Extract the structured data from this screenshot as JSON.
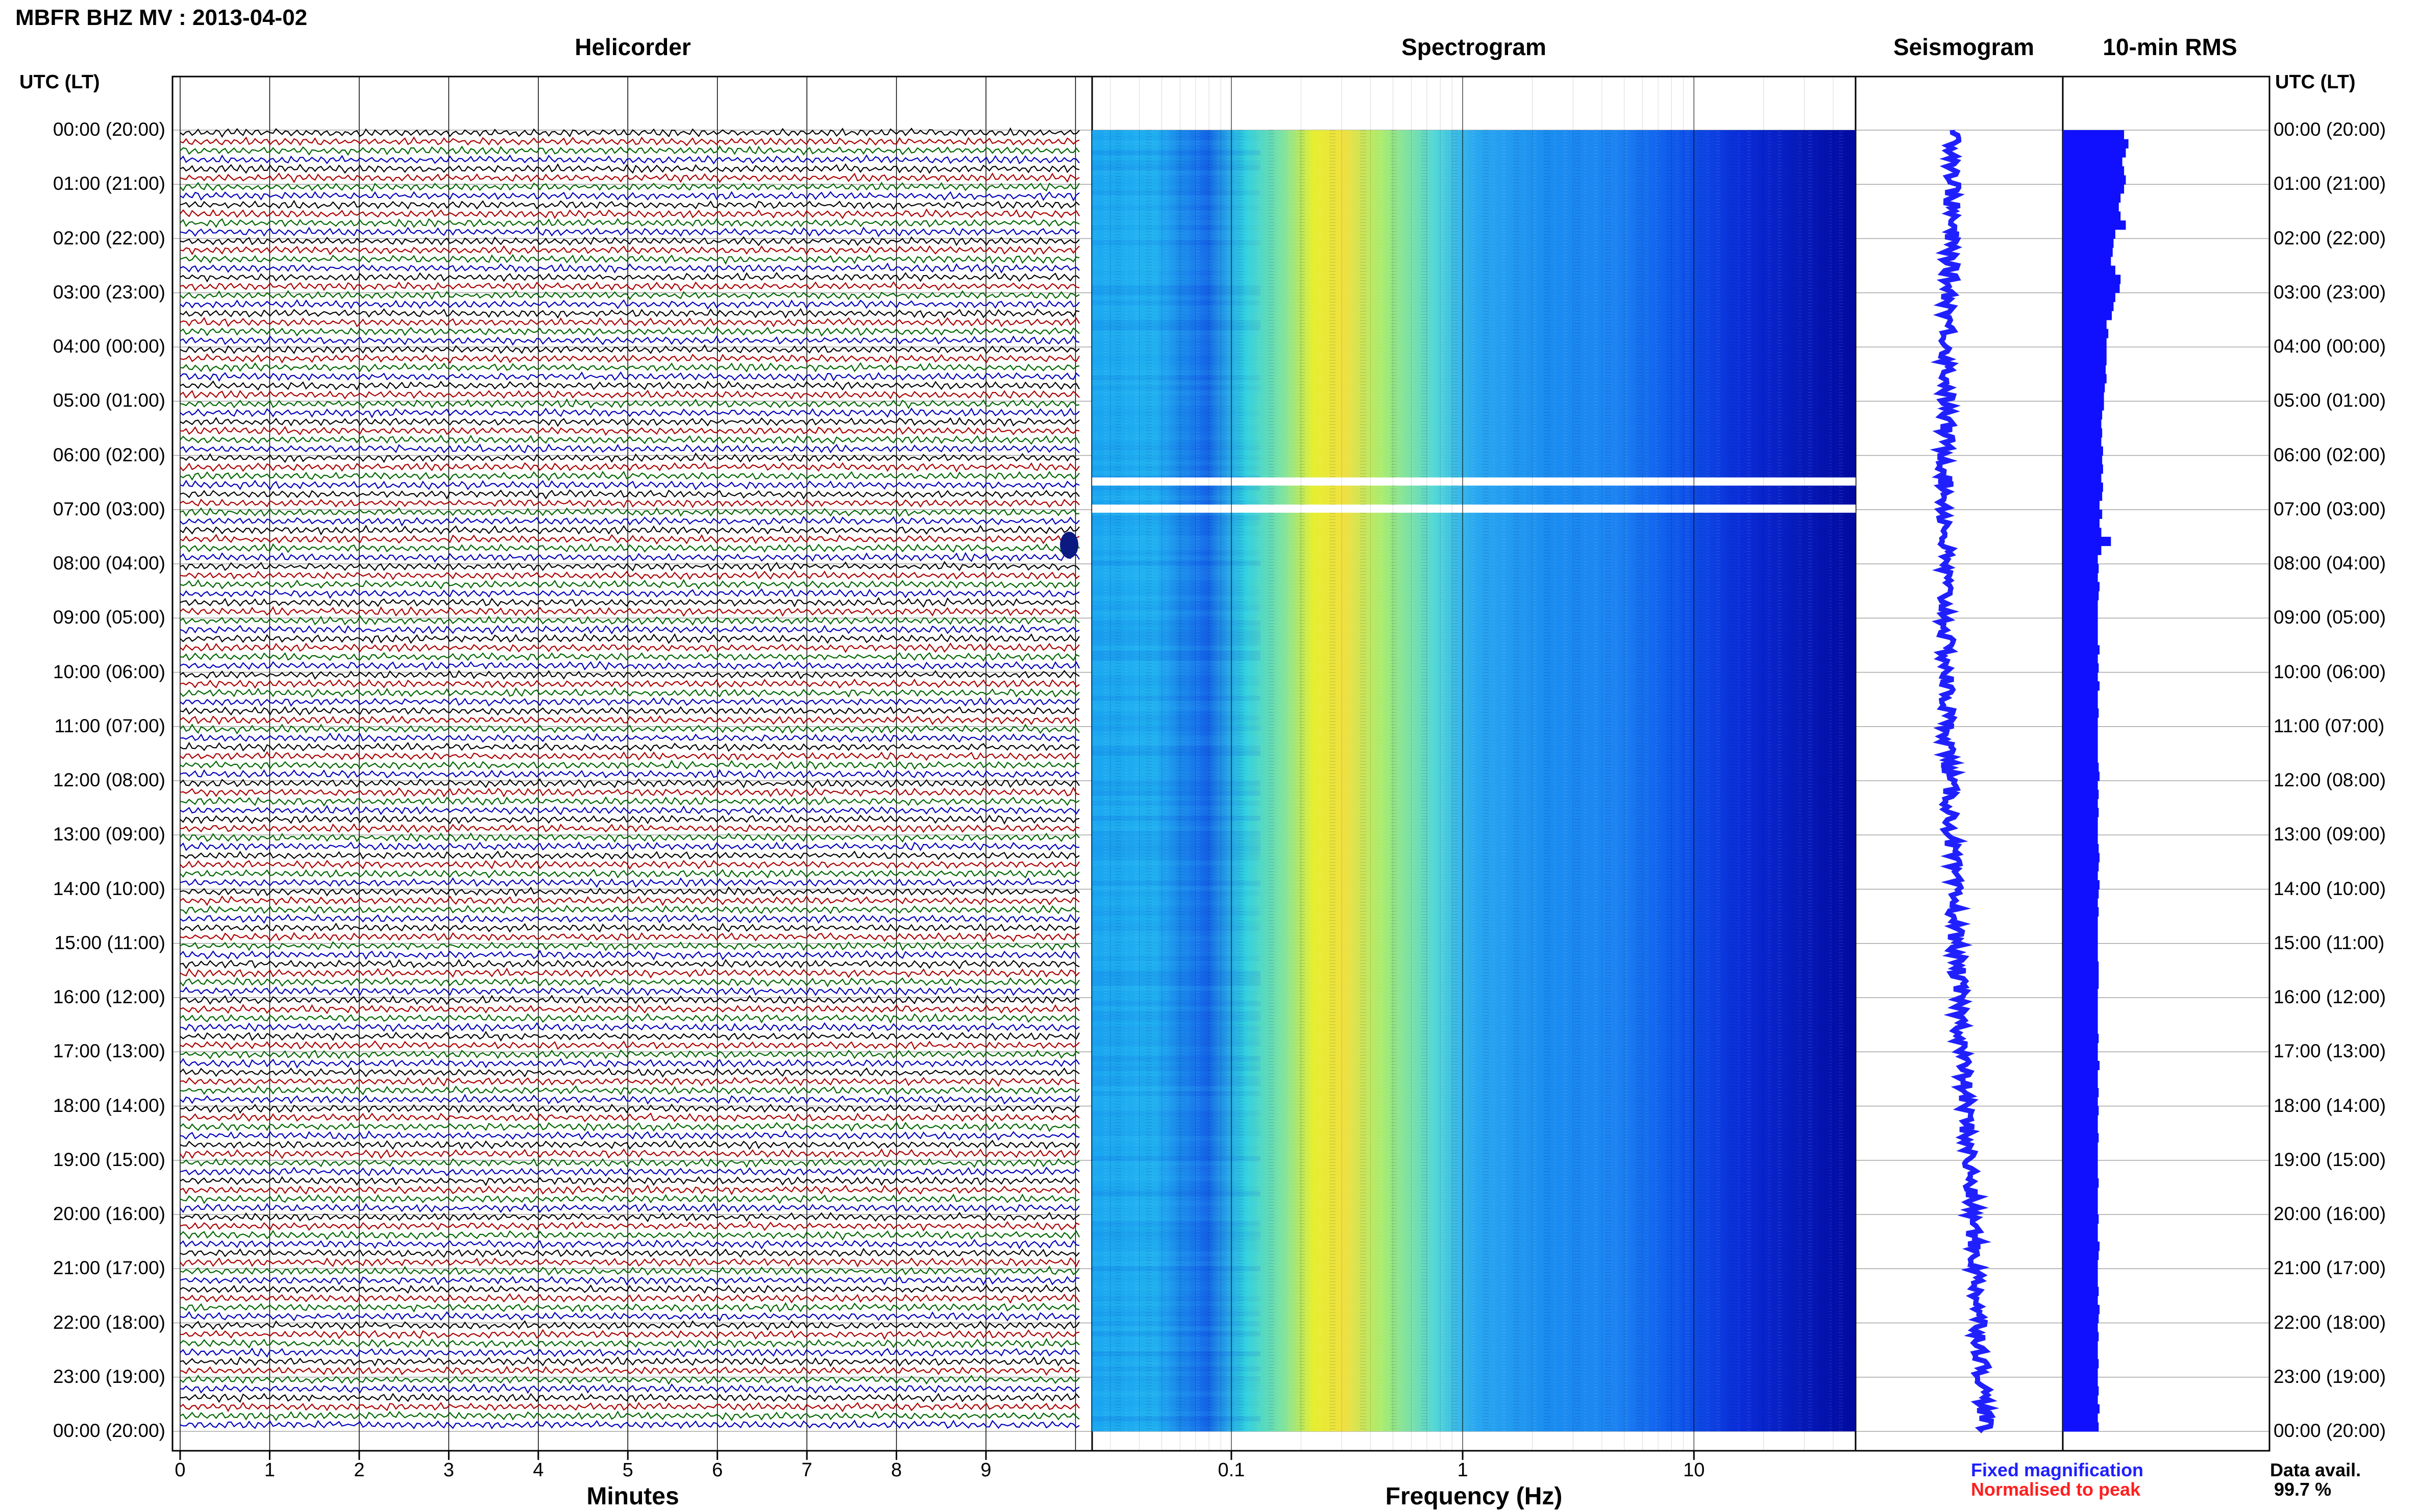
{
  "title": "MBFR BHZ MV : 2013-04-02",
  "panels": {
    "helicorder": "Helicorder",
    "spectrogram": "Spectrogram",
    "seismogram": "Seismogram",
    "rms": "10-min RMS"
  },
  "time_axis_label": "UTC (LT)",
  "hour_labels": [
    "00:00 (20:00)",
    "01:00 (21:00)",
    "02:00 (22:00)",
    "03:00 (23:00)",
    "04:00 (00:00)",
    "05:00 (01:00)",
    "06:00 (02:00)",
    "07:00 (03:00)",
    "08:00 (04:00)",
    "09:00 (05:00)",
    "10:00 (06:00)",
    "11:00 (07:00)",
    "12:00 (08:00)",
    "13:00 (09:00)",
    "14:00 (10:00)",
    "15:00 (11:00)",
    "16:00 (12:00)",
    "17:00 (13:00)",
    "18:00 (14:00)",
    "19:00 (15:00)",
    "20:00 (16:00)",
    "21:00 (17:00)",
    "22:00 (18:00)",
    "23:00 (19:00)",
    "00:00 (20:00)"
  ],
  "helicorder_axis": {
    "title": "Minutes",
    "ticks": [
      "0",
      "1",
      "2",
      "3",
      "4",
      "5",
      "6",
      "7",
      "8",
      "9"
    ]
  },
  "spectrogram_axis": {
    "title": "Frequency (Hz)",
    "ticks": [
      "0.1",
      "1",
      "10"
    ]
  },
  "legend": {
    "fixed": "Fixed magnification",
    "normalised": "Normalised to peak",
    "fixed_color": "#1f1fff",
    "normalised_color": "#ff1f1f"
  },
  "data_availability": {
    "label": "Data avail.",
    "value": "99.7 %"
  },
  "colors": {
    "trace_cycle": [
      "#000000",
      "#aa0000",
      "#006600",
      "#0000bb"
    ],
    "rms_bar": "#1010ff",
    "seismogram": "#2020ff"
  },
  "chart_data": {
    "type": "helicorder",
    "rows_per_hour": 6,
    "gaps_hours": [
      6.5,
      7.0
    ],
    "rms_per_10min_relative": [
      0.7,
      0.75,
      0.72,
      0.68,
      0.7,
      0.72,
      0.7,
      0.66,
      0.64,
      0.66,
      0.72,
      0.6,
      0.58,
      0.57,
      0.55,
      0.6,
      0.66,
      0.65,
      0.6,
      0.58,
      0.56,
      0.5,
      0.52,
      0.5,
      0.5,
      0.5,
      0.49,
      0.5,
      0.48,
      0.47,
      0.47,
      0.45,
      0.44,
      0.45,
      0.44,
      0.46,
      0.45,
      0.46,
      0.44,
      0.46,
      0.45,
      0.42,
      0.45,
      0.42,
      0.44,
      0.55,
      0.44,
      0.4,
      0.41,
      0.4,
      0.42,
      0.41,
      0.4,
      0.4,
      0.4,
      0.4,
      0.4,
      0.42,
      0.4,
      0.41,
      0.4,
      0.42,
      0.4,
      0.4,
      0.41,
      0.4,
      0.4,
      0.4,
      0.4,
      0.4,
      0.41,
      0.42,
      0.4,
      0.41,
      0.4,
      0.41,
      0.4,
      0.4,
      0.4,
      0.41,
      0.42,
      0.41,
      0.4,
      0.42,
      0.41,
      0.4,
      0.41,
      0.4,
      0.4,
      0.4,
      0.4,
      0.4,
      0.41,
      0.41,
      0.41,
      0.4,
      0.4,
      0.4,
      0.4,
      0.4,
      0.41,
      0.4,
      0.4,
      0.42,
      0.4,
      0.4,
      0.41,
      0.4,
      0.41,
      0.4,
      0.4,
      0.41,
      0.4,
      0.4,
      0.4,
      0.4,
      0.41,
      0.4,
      0.4,
      0.4,
      0.41,
      0.4,
      0.4,
      0.42,
      0.41,
      0.4,
      0.4,
      0.4,
      0.41,
      0.4,
      0.42,
      0.41,
      0.4,
      0.41,
      0.4,
      0.4,
      0.41,
      0.4,
      0.4,
      0.41,
      0.4,
      0.42,
      0.4,
      0.41
    ]
  }
}
